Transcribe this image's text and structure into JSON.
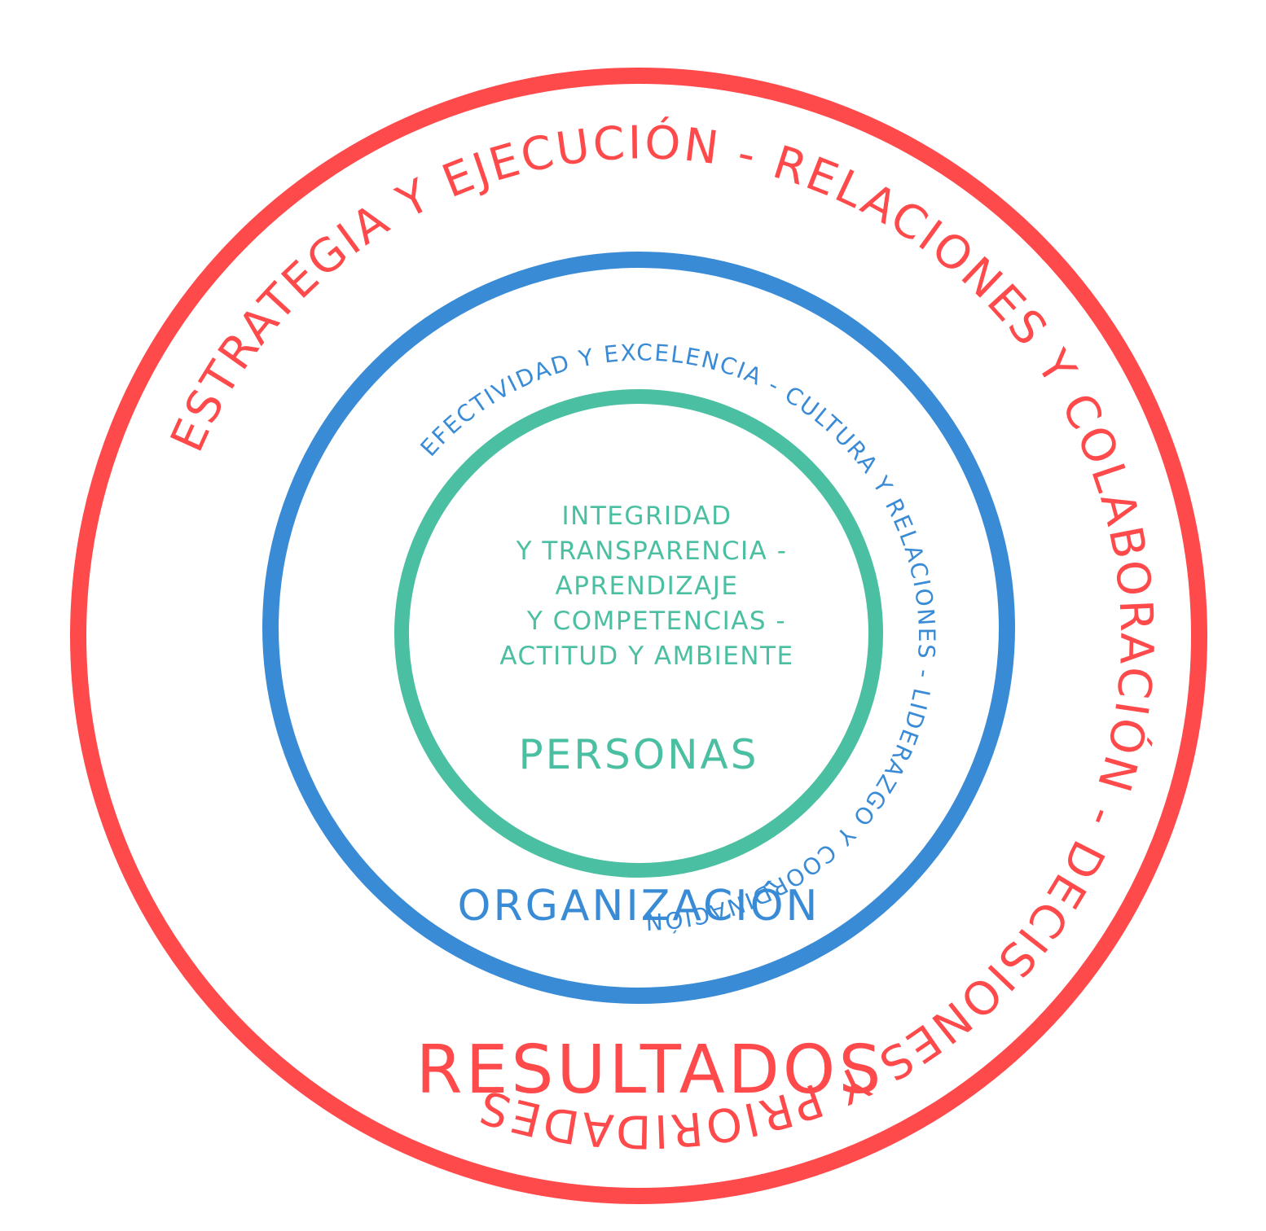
{
  "colors": {
    "results": "#ff4a4c",
    "organization": "#3a8bd6",
    "people": "#4bbfa1",
    "background": "#ffffff"
  },
  "results": {
    "title": "RESULTADOS",
    "arc_left": "ESTRATEGIA Y EJECUCIÓN - ",
    "arc_top": "RELACIONES Y COLABORACIÓN - ",
    "arc_right": "DECISIONES Y PRIORIDADES"
  },
  "organization": {
    "title": "ORGANIZACIÓN",
    "arc_left": "EFECTIVIDAD Y EXCELENCIA - ",
    "arc_top": "CULTURA Y RELACIONES - ",
    "arc_right": "LIDERAZGO Y COORDINACIÓN"
  },
  "people": {
    "title": "PERSONAS",
    "lines": [
      "INTEGRIDAD",
      "Y TRANSPARENCIA -",
      "APRENDIZAJE",
      "Y COMPETENCIAS -",
      "ACTITUD Y AMBIENTE"
    ]
  }
}
